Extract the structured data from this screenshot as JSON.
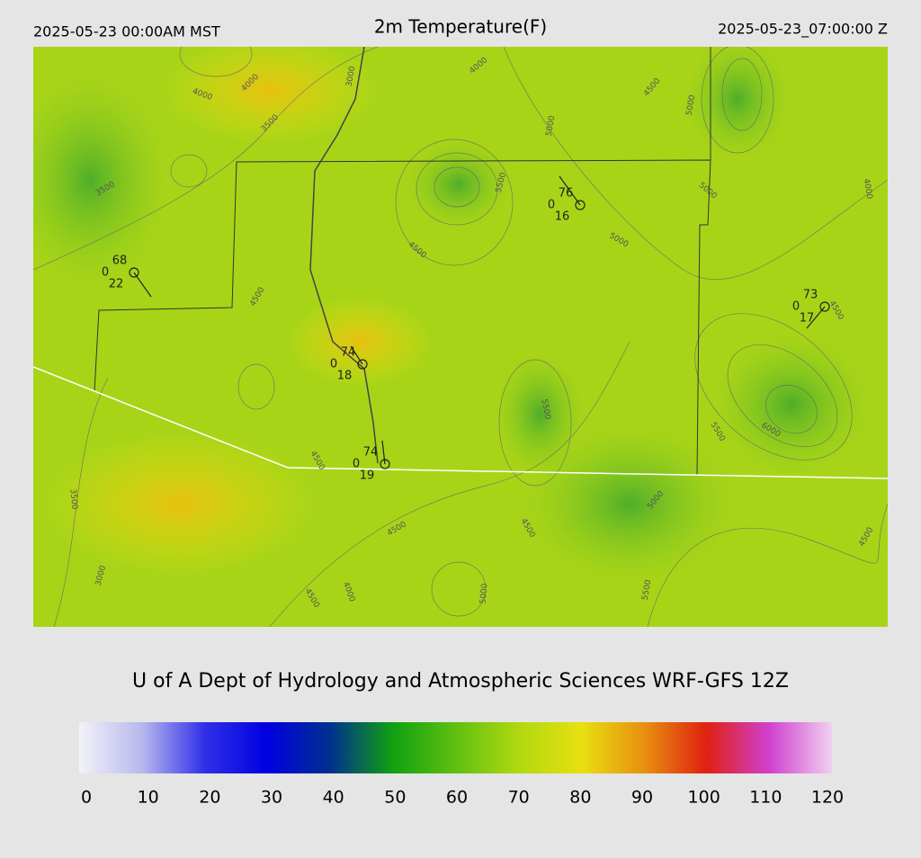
{
  "header": {
    "left": "2025-05-23 00:00AM MST",
    "title": "2m Temperature(F)",
    "right": "2025-05-23_07:00:00 Z"
  },
  "contour_labels": [
    "4000",
    "4000",
    "3500",
    "3000",
    "4000",
    "4500",
    "5000",
    "5000",
    "3500",
    "5500",
    "5000",
    "4000",
    "4500",
    "5000",
    "4500",
    "4500",
    "5500",
    "5500",
    "6000",
    "4500",
    "5000",
    "3500",
    "4500",
    "4500",
    "4500",
    "3000",
    "4500",
    "4000",
    "5000",
    "5500"
  ],
  "stations": [
    {
      "temp": "68",
      "mid": "0",
      "low": "22"
    },
    {
      "temp": "76",
      "mid": "0",
      "low": "16"
    },
    {
      "temp": "73",
      "mid": "0",
      "low": "17"
    },
    {
      "temp": "74",
      "mid": "0",
      "low": "18"
    },
    {
      "temp": "74",
      "mid": "0",
      "low": "19"
    }
  ],
  "footer": "U of A Dept of Hydrology and Atmospheric Sciences WRF-GFS 12Z",
  "colorbar": {
    "ticks": [
      0,
      10,
      20,
      30,
      40,
      50,
      60,
      70,
      80,
      90,
      100,
      110,
      120
    ],
    "colors": [
      "#f2f2f8",
      "#b8b8ee",
      "#3030e8",
      "#0000e0",
      "#003090",
      "#10a010",
      "#60c010",
      "#b0d810",
      "#e8e010",
      "#e89010",
      "#e02010",
      "#d040d0",
      "#f0d0f0"
    ]
  }
}
